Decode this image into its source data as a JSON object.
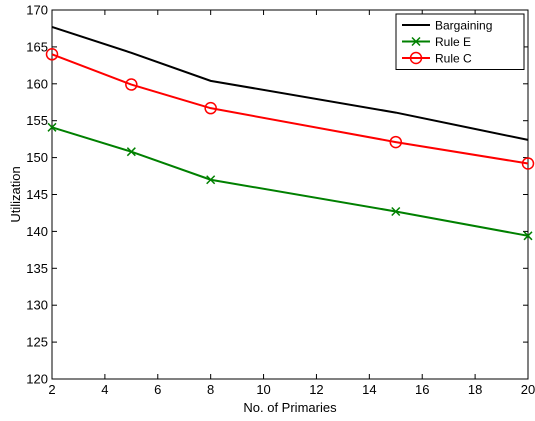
{
  "chart_data": {
    "type": "line",
    "xlabel": "No. of Primaries",
    "ylabel": "Utilization",
    "xlim": [
      2,
      20
    ],
    "ylim": [
      120,
      170
    ],
    "xticks": [
      2,
      4,
      6,
      8,
      10,
      12,
      14,
      16,
      18,
      20
    ],
    "yticks": [
      120,
      125,
      130,
      135,
      140,
      145,
      150,
      155,
      160,
      165,
      170
    ],
    "grid": false,
    "legend_position": "top-right",
    "series": [
      {
        "name": "Bargaining",
        "color": "#000000",
        "marker": "none",
        "x": [
          2,
          5,
          8,
          15,
          20
        ],
        "y": [
          167.7,
          164.2,
          160.4,
          156.1,
          152.4
        ]
      },
      {
        "name": "Rule E",
        "color": "#008000",
        "marker": "x",
        "x": [
          2,
          5,
          8,
          15,
          20
        ],
        "y": [
          154.1,
          150.8,
          147.0,
          142.7,
          139.4
        ]
      },
      {
        "name": "Rule C",
        "color": "#ff0000",
        "marker": "circle",
        "x": [
          2,
          5,
          8,
          15,
          20
        ],
        "y": [
          164.0,
          159.9,
          156.7,
          152.1,
          149.2
        ]
      }
    ]
  }
}
